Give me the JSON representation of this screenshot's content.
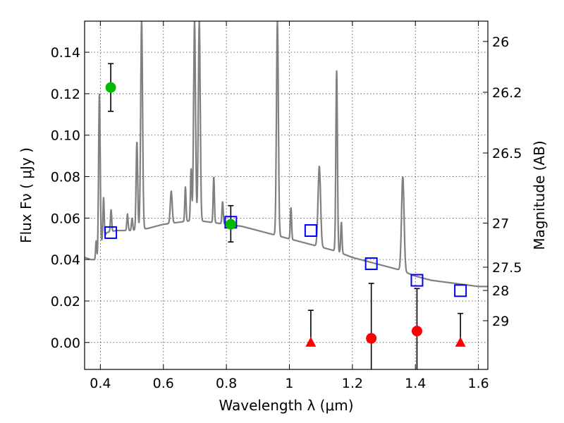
{
  "chart_data": {
    "type": "scatter",
    "xlabel": "Wavelength  λ (μm)",
    "ylabel": "Flux  Fν  ( μJy )",
    "y2label": "Magnitude (AB)",
    "xlim": [
      0.35,
      1.63
    ],
    "ylim": [
      -0.013,
      0.155
    ],
    "grid": true,
    "x_ticks": [
      0.4,
      0.6,
      0.8,
      1.0,
      1.2,
      1.4,
      1.6
    ],
    "x_tick_labels": [
      "0.4",
      "0.6",
      "0.8",
      "1",
      "1.2",
      "1.4",
      "1.6"
    ],
    "y_ticks": [
      0.0,
      0.02,
      0.04,
      0.06,
      0.08,
      0.1,
      0.12,
      0.14
    ],
    "y_tick_labels": [
      "0.00",
      "0.02",
      "0.04",
      "0.06",
      "0.08",
      "0.10",
      "0.12",
      "0.14"
    ],
    "y2_ticks": [
      {
        "flux": 0.1452,
        "label": "26"
      },
      {
        "flux": 0.1207,
        "label": "26.2"
      },
      {
        "flux": 0.0914,
        "label": "26.5"
      },
      {
        "flux": 0.0576,
        "label": "27"
      },
      {
        "flux": 0.0363,
        "label": "27.5"
      },
      {
        "flux": 0.0251,
        "label": "28"
      },
      {
        "flux": 0.0105,
        "label": "29"
      }
    ],
    "colors": {
      "spectrum": "#808080",
      "model": "#0000ff",
      "detection": "#00bb00",
      "nondetection": "#ff0000",
      "errorbar": "#000000"
    },
    "spectrum_continuum": [
      [
        0.35,
        0.041
      ],
      [
        0.37,
        0.04
      ],
      [
        0.38,
        0.04
      ],
      [
        0.39,
        0.038
      ],
      [
        0.4,
        0.047
      ],
      [
        0.42,
        0.053
      ],
      [
        0.45,
        0.054
      ],
      [
        0.5,
        0.054
      ],
      [
        0.55,
        0.055
      ],
      [
        0.6,
        0.057
      ],
      [
        0.65,
        0.058
      ],
      [
        0.7,
        0.059
      ],
      [
        0.75,
        0.058
      ],
      [
        0.8,
        0.057
      ],
      [
        0.85,
        0.056
      ],
      [
        0.9,
        0.054
      ],
      [
        0.95,
        0.052
      ],
      [
        1.0,
        0.05
      ],
      [
        1.05,
        0.048
      ],
      [
        1.1,
        0.046
      ],
      [
        1.15,
        0.044
      ],
      [
        1.2,
        0.041
      ],
      [
        1.25,
        0.039
      ],
      [
        1.3,
        0.037
      ],
      [
        1.35,
        0.035
      ],
      [
        1.4,
        0.032
      ],
      [
        1.45,
        0.03
      ],
      [
        1.5,
        0.029
      ],
      [
        1.55,
        0.028
      ],
      [
        1.6,
        0.027
      ],
      [
        1.63,
        0.027
      ]
    ],
    "spectrum_lines": [
      {
        "x": 0.3869,
        "peak": 0.049,
        "w": 0.002
      },
      {
        "x": 0.3969,
        "peak": 0.12,
        "w": 0.0025
      },
      {
        "x": 0.4102,
        "peak": 0.07,
        "w": 0.002
      },
      {
        "x": 0.434,
        "peak": 0.064,
        "w": 0.002
      },
      {
        "x": 0.4861,
        "peak": 0.062,
        "w": 0.002
      },
      {
        "x": 0.5007,
        "peak": 0.06,
        "w": 0.002
      },
      {
        "x": 0.516,
        "peak": 0.097,
        "w": 0.0025
      },
      {
        "x": 0.531,
        "peak": 0.155,
        "w": 0.003
      },
      {
        "x": 0.625,
        "peak": 0.073,
        "w": 0.003
      },
      {
        "x": 0.67,
        "peak": 0.075,
        "w": 0.002
      },
      {
        "x": 0.688,
        "peak": 0.084,
        "w": 0.002
      },
      {
        "x": 0.699,
        "peak": 0.155,
        "w": 0.003
      },
      {
        "x": 0.714,
        "peak": 0.155,
        "w": 0.003
      },
      {
        "x": 0.76,
        "peak": 0.08,
        "w": 0.002
      },
      {
        "x": 0.788,
        "peak": 0.068,
        "w": 0.002
      },
      {
        "x": 0.962,
        "peak": 0.155,
        "w": 0.003
      },
      {
        "x": 1.005,
        "peak": 0.065,
        "w": 0.002
      },
      {
        "x": 1.095,
        "peak": 0.085,
        "w": 0.004
      },
      {
        "x": 1.15,
        "peak": 0.131,
        "w": 0.0025
      },
      {
        "x": 1.165,
        "peak": 0.058,
        "w": 0.002
      },
      {
        "x": 1.36,
        "peak": 0.08,
        "w": 0.004
      }
    ],
    "model_points": [
      {
        "x": 0.433,
        "y": 0.053
      },
      {
        "x": 0.814,
        "y": 0.058
      },
      {
        "x": 1.068,
        "y": 0.054
      },
      {
        "x": 1.26,
        "y": 0.038
      },
      {
        "x": 1.405,
        "y": 0.03
      },
      {
        "x": 1.543,
        "y": 0.025
      }
    ],
    "detections": [
      {
        "x": 0.433,
        "y": 0.123,
        "err_lo": 0.0115,
        "err_hi": 0.0115
      },
      {
        "x": 0.814,
        "y": 0.057,
        "err_lo": 0.0085,
        "err_hi": 0.009
      }
    ],
    "upper_limit_circles": [
      {
        "x": 1.26,
        "y": 0.002,
        "err_lo": 0.02,
        "err_hi": 0.0265
      },
      {
        "x": 1.405,
        "y": 0.0055,
        "err_lo": 0.02,
        "err_hi": 0.0205
      }
    ],
    "upper_limit_triangles": [
      {
        "x": 1.068,
        "y": 0.0,
        "err_hi": 0.0155
      },
      {
        "x": 1.543,
        "y": 0.0,
        "err_hi": 0.014
      }
    ]
  }
}
